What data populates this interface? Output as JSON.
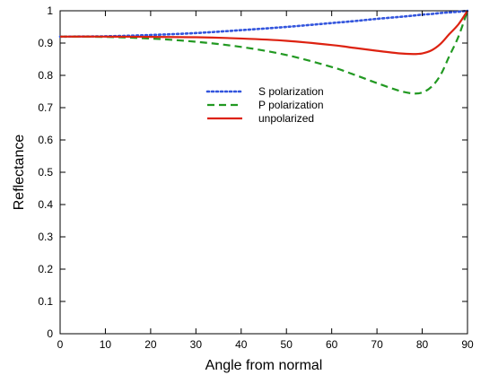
{
  "chart_data": {
    "type": "line",
    "title": "",
    "xlabel": "Angle from normal",
    "ylabel": "Reflectance",
    "xlim": [
      0,
      90
    ],
    "ylim": [
      0,
      1
    ],
    "xticks": [
      "0",
      "10",
      "20",
      "30",
      "40",
      "50",
      "60",
      "70",
      "80",
      "90"
    ],
    "yticks": [
      "0",
      "0.1",
      "0.2",
      "0.3",
      "0.4",
      "0.5",
      "0.6",
      "0.7",
      "0.8",
      "0.9",
      "1"
    ],
    "grid": false,
    "legend_position": "upper-center",
    "x": [
      0,
      10,
      20,
      30,
      40,
      50,
      60,
      65,
      70,
      75,
      78,
      80,
      82,
      84,
      86,
      88,
      90
    ],
    "series": [
      {
        "name": "S polarization",
        "style": "dotted",
        "color": "#3355dd",
        "values": [
          0.92,
          0.921,
          0.925,
          0.931,
          0.94,
          0.95,
          0.962,
          0.968,
          0.975,
          0.981,
          0.985,
          0.988,
          0.99,
          0.993,
          0.995,
          0.997,
          1.0
        ]
      },
      {
        "name": "P polarization",
        "style": "dashed",
        "color": "#229922",
        "values": [
          0.92,
          0.919,
          0.914,
          0.904,
          0.888,
          0.863,
          0.826,
          0.802,
          0.776,
          0.752,
          0.744,
          0.747,
          0.764,
          0.8,
          0.86,
          0.92,
          1.0
        ]
      },
      {
        "name": "unpolarized",
        "style": "solid",
        "color": "#dd2211",
        "values": [
          0.92,
          0.92,
          0.919,
          0.918,
          0.914,
          0.907,
          0.894,
          0.885,
          0.876,
          0.868,
          0.866,
          0.868,
          0.877,
          0.897,
          0.928,
          0.958,
          1.0
        ]
      }
    ]
  }
}
